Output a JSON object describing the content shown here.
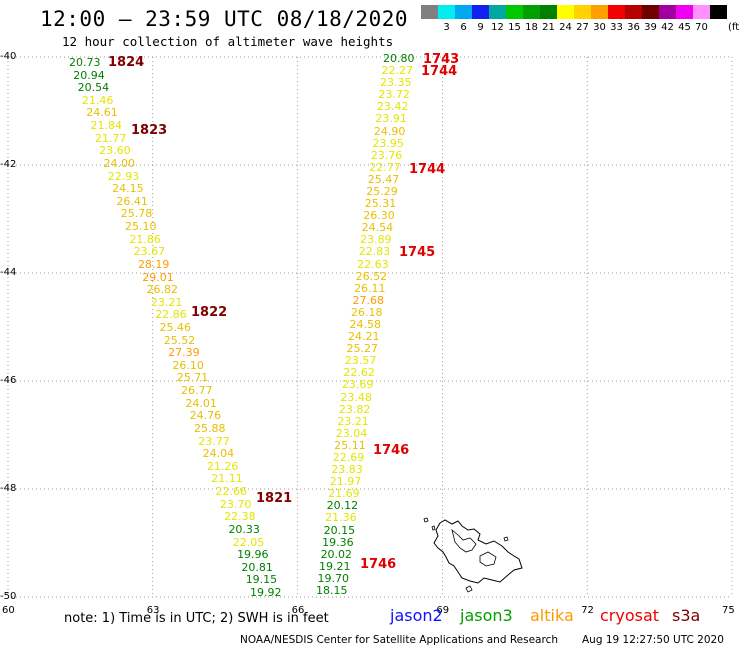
{
  "header": {
    "title": "12:00 – 23:59 UTC 08/18/2020",
    "subtitle": "12 hour collection of altimeter wave heights"
  },
  "colorbar": {
    "unit": "(ft)",
    "cells": [
      {
        "color": "#808080",
        "label": ""
      },
      {
        "color": "#00eeee",
        "label": "3"
      },
      {
        "color": "#00a8f0",
        "label": "6"
      },
      {
        "color": "#1020f0",
        "label": "9"
      },
      {
        "color": "#00a8a0",
        "label": "12"
      },
      {
        "color": "#00c800",
        "label": "15"
      },
      {
        "color": "#00a000",
        "label": "18"
      },
      {
        "color": "#008000",
        "label": "21"
      },
      {
        "color": "#ffff00",
        "label": "24"
      },
      {
        "color": "#ffd200",
        "label": "27"
      },
      {
        "color": "#ffa000",
        "label": "30"
      },
      {
        "color": "#f00000",
        "label": "33"
      },
      {
        "color": "#b40000",
        "label": "36"
      },
      {
        "color": "#700000",
        "label": "39"
      },
      {
        "color": "#a000a0",
        "label": "42"
      },
      {
        "color": "#f000f0",
        "label": "45"
      },
      {
        "color": "#ff90ff",
        "label": "70"
      },
      {
        "color": "#000000",
        "label": ""
      }
    ]
  },
  "axes": {
    "lat_labels": [
      "-40",
      "-42",
      "-44",
      "-46",
      "-48",
      "-50"
    ],
    "lon_labels": [
      "60",
      "63",
      "66",
      "69",
      "72",
      "75"
    ]
  },
  "chart_data": {
    "type": "scatter",
    "x_axis": "longitude",
    "y_axis": "latitude",
    "xlim": [
      60,
      75
    ],
    "ylim": [
      -50,
      -40
    ],
    "lat_ticks": [
      -40,
      -42,
      -44,
      -46,
      -48,
      -50
    ],
    "lon_ticks": [
      60,
      63,
      66,
      69,
      72,
      75
    ],
    "track_west": {
      "values": [
        "20.73",
        "20.94",
        "20.54",
        "21.46",
        "24.61",
        "21.84",
        "21.77",
        "23.60",
        "24.00",
        "22.93",
        "24.15",
        "26.41",
        "25.78",
        "25.10",
        "21.86",
        "23.67",
        "28.19",
        "29.01",
        "26.82",
        "23.21",
        "22.86",
        "25.46",
        "25.52",
        "27.39",
        "26.10",
        "25.71",
        "26.77",
        "24.01",
        "24.76",
        "25.88",
        "23.77",
        "24.04",
        "21.26",
        "21.11",
        "22.66",
        "23.70",
        "22.38",
        "20.33",
        "22.05",
        "19.96",
        "20.81",
        "19.15",
        "19.92"
      ],
      "time_labels": [
        "1824",
        "1823",
        "1822",
        "1821"
      ]
    },
    "track_east": {
      "values": [
        "20.80",
        "22.27",
        "23.35",
        "23.72",
        "23.42",
        "23.91",
        "24.90",
        "23.95",
        "23.76",
        "22.77",
        "25.47",
        "25.29",
        "25.31",
        "26.30",
        "24.54",
        "23.89",
        "22.83",
        "22.63",
        "26.52",
        "26.11",
        "27.68",
        "26.18",
        "24.58",
        "24.21",
        "25.27",
        "23.57",
        "22.62",
        "23.69",
        "23.48",
        "23.82",
        "23.21",
        "23.04",
        "25.11",
        "22.69",
        "23.83",
        "21.97",
        "21.69",
        "20.12",
        "21.36",
        "20.15",
        "19.36",
        "20.02",
        "19.21",
        "19.70",
        "18.15"
      ],
      "time_labels": [
        "1743",
        "1744",
        "1744",
        "1745",
        "1746",
        "1746"
      ]
    }
  },
  "note": "note: 1) Time is in UTC; 2) SWH is in feet",
  "satellites": [
    {
      "name": "jason2",
      "color": "#1010ff"
    },
    {
      "name": "jason3",
      "color": "#00a000"
    },
    {
      "name": "altika",
      "color": "#ff9a00"
    },
    {
      "name": "cryosat",
      "color": "#f00000"
    },
    {
      "name": "s3a",
      "color": "#800000"
    }
  ],
  "footer": {
    "credit": "NOAA/NESDIS Center for Satellite Applications and Research",
    "timestamp": "Aug 19 12:27:50 UTC 2020"
  }
}
